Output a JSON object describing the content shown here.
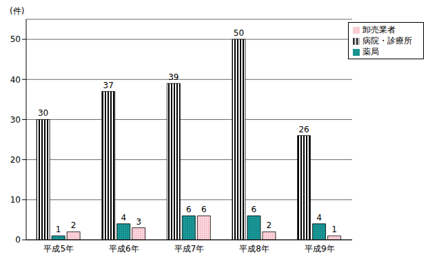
{
  "chart_data": {
    "type": "bar",
    "y_label": "(件)",
    "categories": [
      "平成5年",
      "平成6年",
      "平成7年",
      "平成8年",
      "平成9年"
    ],
    "series": [
      {
        "name": "病院・診療所",
        "color": "#000000",
        "values": [
          30,
          37,
          39,
          50,
          26
        ]
      },
      {
        "name": "薬局",
        "color": "#1a9a9a",
        "values": [
          1,
          4,
          6,
          6,
          4
        ]
      },
      {
        "name": "卸売業者",
        "color": "#f08a9a",
        "values": [
          2,
          3,
          6,
          2,
          1
        ]
      }
    ],
    "ylim": [
      0,
      55
    ],
    "yticks": [
      0,
      10,
      20,
      30,
      40,
      50
    ],
    "grid": true,
    "legend": "top-right",
    "data_labels": true
  }
}
